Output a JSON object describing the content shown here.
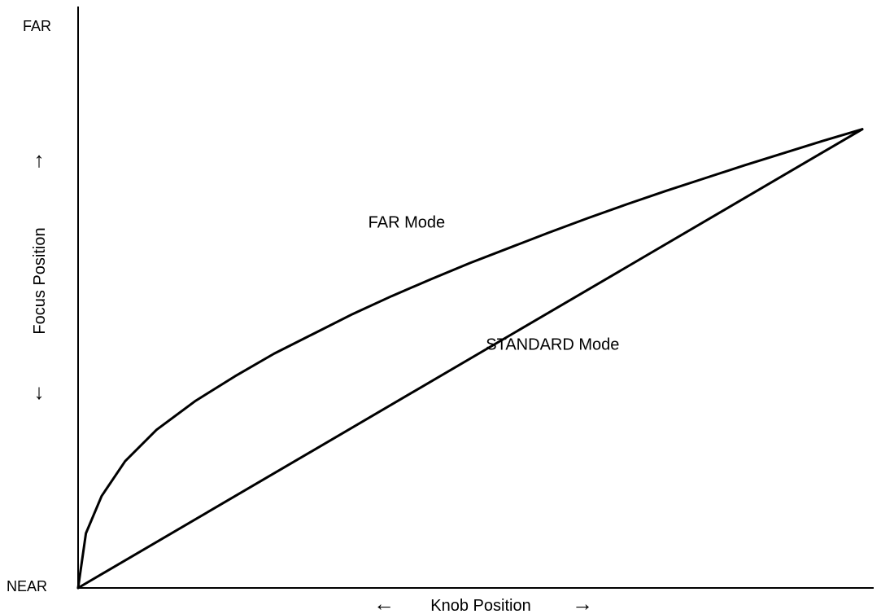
{
  "chart_data": {
    "type": "line",
    "title": "",
    "xlabel": "Knob Position",
    "ylabel": "Focus Position",
    "x_left_arrow": "←",
    "x_right_arrow": "→",
    "y_up_arrow": "↑",
    "y_down_arrow": "↓",
    "y_tick_labels": {
      "top": "FAR",
      "bottom": "NEAR"
    },
    "xlim": [
      0,
      1
    ],
    "ylim": [
      0,
      1
    ],
    "grid": false,
    "legend": "none",
    "series": [
      {
        "name": "FAR Mode",
        "points": [
          [
            0.0,
            0.0
          ],
          [
            0.01,
            0.094
          ],
          [
            0.03,
            0.158
          ],
          [
            0.06,
            0.218
          ],
          [
            0.1,
            0.272
          ],
          [
            0.15,
            0.322
          ],
          [
            0.2,
            0.364
          ],
          [
            0.25,
            0.403
          ],
          [
            0.3,
            0.437
          ],
          [
            0.35,
            0.471
          ],
          [
            0.4,
            0.502
          ],
          [
            0.45,
            0.531
          ],
          [
            0.5,
            0.559
          ],
          [
            0.55,
            0.585
          ],
          [
            0.6,
            0.611
          ],
          [
            0.65,
            0.636
          ],
          [
            0.7,
            0.66
          ],
          [
            0.75,
            0.683
          ],
          [
            0.8,
            0.705
          ],
          [
            0.85,
            0.727
          ],
          [
            0.9,
            0.748
          ],
          [
            0.95,
            0.769
          ],
          [
            1.0,
            0.789
          ]
        ]
      },
      {
        "name": "STANDARD Mode",
        "points": [
          [
            0.0,
            0.0
          ],
          [
            1.0,
            0.789
          ]
        ]
      }
    ],
    "annotations": [
      {
        "text": "FAR Mode",
        "x": 0.37,
        "y": 0.62
      },
      {
        "text": "STANDARD Mode",
        "x": 0.52,
        "y": 0.41
      }
    ],
    "color": "#000000"
  }
}
